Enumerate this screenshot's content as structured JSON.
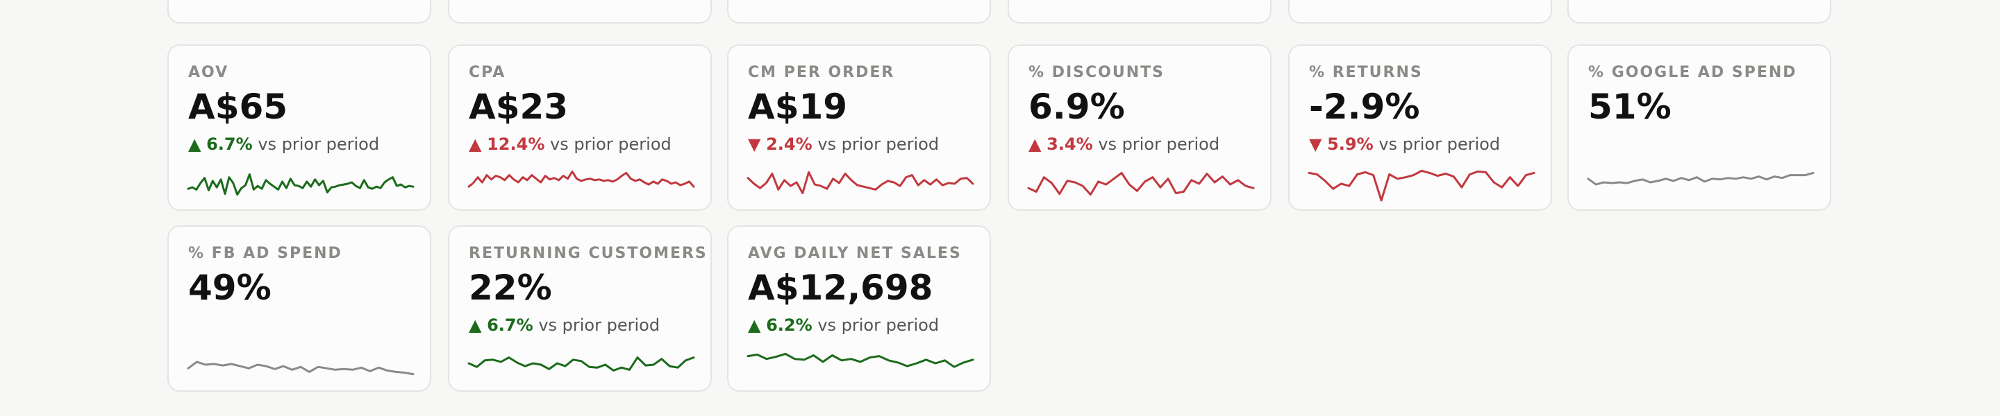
{
  "colors": {
    "positive": "#1b6b1b",
    "negative": "#c2383f",
    "neutral": "#8a8a86"
  },
  "cards": [
    {
      "key": "aov",
      "label": "AOV",
      "value": "A$65",
      "arrow": "▲",
      "delta": "6.7%",
      "suffix": "vs prior period",
      "tone": "good",
      "spark_color": "#1b6b1b",
      "spark": [
        0.34,
        0.38,
        0.32,
        0.5,
        0.64,
        0.3,
        0.56,
        0.38,
        0.6,
        0.2,
        0.66,
        0.5,
        0.18,
        0.36,
        0.44,
        0.74,
        0.32,
        0.42,
        0.34,
        0.58,
        0.48,
        0.4,
        0.32,
        0.54,
        0.36,
        0.62,
        0.44,
        0.42,
        0.36,
        0.54,
        0.4,
        0.6,
        0.44,
        0.56,
        0.24,
        0.38,
        0.4,
        0.44,
        0.46,
        0.48,
        0.52,
        0.42,
        0.36,
        0.58,
        0.38,
        0.34,
        0.4,
        0.36,
        0.52,
        0.6,
        0.66,
        0.42,
        0.46,
        0.38,
        0.42,
        0.4
      ]
    },
    {
      "key": "cpa",
      "label": "CPA",
      "value": "A$23",
      "arrow": "▲",
      "delta": "12.4%",
      "suffix": "vs prior period",
      "tone": "bad",
      "spark_color": "#c2383f",
      "spark": [
        0.4,
        0.5,
        0.66,
        0.52,
        0.72,
        0.6,
        0.7,
        0.66,
        0.58,
        0.72,
        0.6,
        0.52,
        0.66,
        0.58,
        0.72,
        0.62,
        0.52,
        0.7,
        0.6,
        0.64,
        0.58,
        0.7,
        0.62,
        0.82,
        0.62,
        0.56,
        0.6,
        0.62,
        0.58,
        0.6,
        0.56,
        0.58,
        0.54,
        0.6,
        0.7,
        0.78,
        0.62,
        0.56,
        0.6,
        0.52,
        0.46,
        0.54,
        0.48,
        0.6,
        0.56,
        0.48,
        0.52,
        0.44,
        0.48,
        0.54,
        0.4
      ]
    },
    {
      "key": "cm-per-order",
      "label": "CM PER ORDER",
      "value": "A$19",
      "arrow": "▼",
      "delta": "2.4%",
      "suffix": "vs prior period",
      "tone": "bad",
      "spark_color": "#c2383f",
      "spark": [
        0.64,
        0.48,
        0.36,
        0.5,
        0.76,
        0.32,
        0.58,
        0.42,
        0.52,
        0.22,
        0.8,
        0.46,
        0.42,
        0.34,
        0.62,
        0.5,
        0.76,
        0.58,
        0.44,
        0.4,
        0.36,
        0.32,
        0.46,
        0.56,
        0.52,
        0.42,
        0.66,
        0.72,
        0.44,
        0.58,
        0.46,
        0.6,
        0.44,
        0.5,
        0.48,
        0.62,
        0.64,
        0.48
      ]
    },
    {
      "key": "discounts",
      "label": "% DISCOUNTS",
      "value": "6.9%",
      "arrow": "▲",
      "delta": "3.4%",
      "suffix": "vs prior period",
      "tone": "bad",
      "spark_color": "#c2383f",
      "spark": [
        0.36,
        0.26,
        0.66,
        0.5,
        0.2,
        0.56,
        0.52,
        0.42,
        0.18,
        0.54,
        0.46,
        0.62,
        0.78,
        0.46,
        0.28,
        0.54,
        0.66,
        0.38,
        0.62,
        0.22,
        0.26,
        0.58,
        0.48,
        0.76,
        0.52,
        0.68,
        0.46,
        0.58,
        0.42,
        0.36
      ]
    },
    {
      "key": "returns",
      "label": "% RETURNS",
      "value": "-2.9%",
      "arrow": "▼",
      "delta": "5.9%",
      "suffix": "vs prior period",
      "tone": "bad",
      "spark_color": "#c2383f",
      "spark": [
        0.78,
        0.74,
        0.56,
        0.34,
        0.48,
        0.42,
        0.74,
        0.8,
        0.72,
        0.02,
        0.74,
        0.62,
        0.66,
        0.72,
        0.84,
        0.78,
        0.7,
        0.76,
        0.68,
        0.38,
        0.74,
        0.82,
        0.8,
        0.52,
        0.38,
        0.66,
        0.42,
        0.72,
        0.78
      ]
    },
    {
      "key": "google-ad-spend",
      "label": "% GOOGLE AD SPEND",
      "value": "51%",
      "arrow": "",
      "delta": "",
      "suffix": "",
      "tone": "none",
      "spark_color": "#8a8a86",
      "spark": [
        0.62,
        0.46,
        0.52,
        0.5,
        0.52,
        0.5,
        0.56,
        0.6,
        0.52,
        0.56,
        0.62,
        0.56,
        0.64,
        0.58,
        0.66,
        0.54,
        0.62,
        0.6,
        0.64,
        0.62,
        0.66,
        0.62,
        0.68,
        0.6,
        0.68,
        0.64,
        0.72,
        0.72,
        0.72,
        0.78
      ]
    },
    {
      "key": "fb-ad-spend",
      "label": "% FB AD SPEND",
      "value": "49%",
      "arrow": "",
      "delta": "",
      "suffix": "",
      "tone": "none",
      "spark_color": "#8a8a86",
      "spark": [
        0.38,
        0.56,
        0.48,
        0.5,
        0.46,
        0.5,
        0.44,
        0.38,
        0.48,
        0.44,
        0.36,
        0.44,
        0.34,
        0.42,
        0.28,
        0.42,
        0.38,
        0.34,
        0.36,
        0.34,
        0.4,
        0.3,
        0.4,
        0.32,
        0.28,
        0.26,
        0.22
      ]
    },
    {
      "key": "returning-customers",
      "label": "RETURNING CUSTOMERS",
      "value": "22%",
      "arrow": "▲",
      "delta": "6.7%",
      "suffix": "vs prior period",
      "tone": "good",
      "spark_color": "#1b6b1b",
      "spark": [
        0.52,
        0.42,
        0.6,
        0.62,
        0.56,
        0.68,
        0.54,
        0.44,
        0.52,
        0.48,
        0.36,
        0.52,
        0.44,
        0.62,
        0.58,
        0.42,
        0.4,
        0.48,
        0.32,
        0.4,
        0.34,
        0.68,
        0.46,
        0.48,
        0.64,
        0.44,
        0.4,
        0.6,
        0.68
      ]
    },
    {
      "key": "avg-daily-net-sales",
      "label": "AVG DAILY NET SALES",
      "value": "A$12,698",
      "arrow": "▲",
      "delta": "6.2%",
      "suffix": "vs prior period",
      "tone": "good",
      "spark_color": "#1b6b1b",
      "spark": [
        0.72,
        0.76,
        0.64,
        0.7,
        0.78,
        0.64,
        0.62,
        0.74,
        0.56,
        0.74,
        0.6,
        0.64,
        0.56,
        0.68,
        0.72,
        0.6,
        0.54,
        0.44,
        0.52,
        0.62,
        0.52,
        0.6,
        0.42,
        0.54,
        0.62
      ]
    }
  ]
}
